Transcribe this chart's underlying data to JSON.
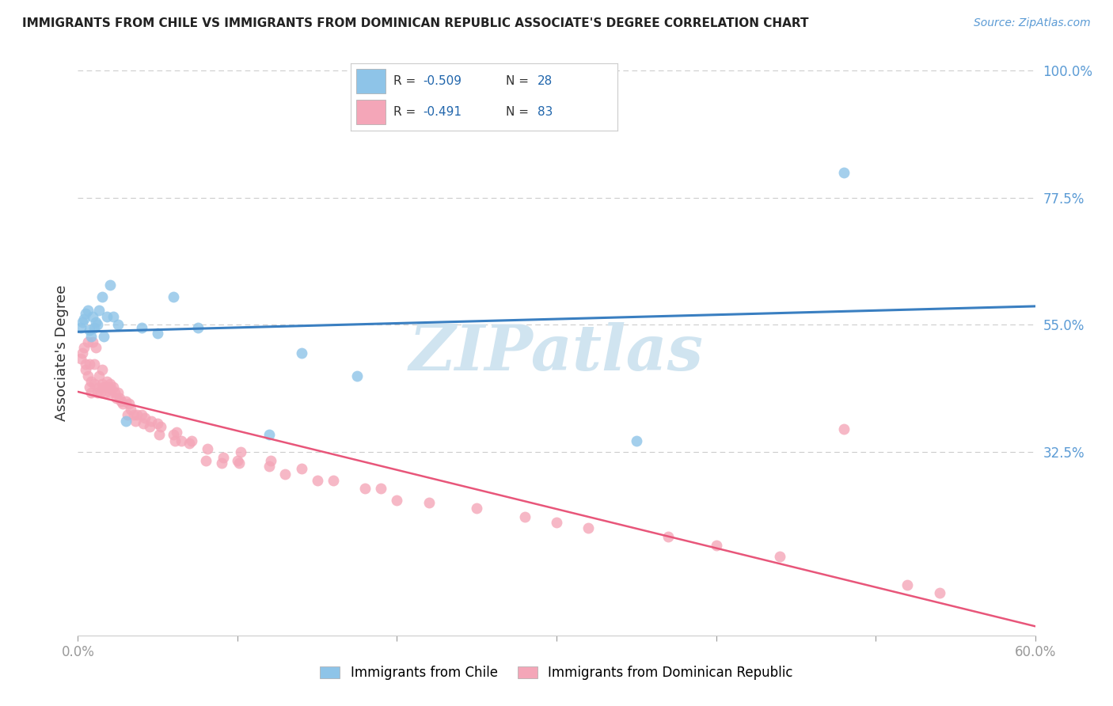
{
  "title": "IMMIGRANTS FROM CHILE VS IMMIGRANTS FROM DOMINICAN REPUBLIC ASSOCIATE'S DEGREE CORRELATION CHART",
  "source": "Source: ZipAtlas.com",
  "ylabel": "Associate's Degree",
  "xlabel_legend1": "Immigrants from Chile",
  "xlabel_legend2": "Immigrants from Dominican Republic",
  "R1": -0.509,
  "N1": 28,
  "R2": -0.491,
  "N2": 83,
  "xlim": [
    0.0,
    0.6
  ],
  "ylim": [
    0.0,
    1.0
  ],
  "xtick_vals": [
    0.0,
    0.1,
    0.2,
    0.3,
    0.4,
    0.5,
    0.6
  ],
  "xtick_labels": [
    "0.0%",
    "",
    "",
    "",
    "",
    "",
    "60.0%"
  ],
  "yticks_right": [
    1.0,
    0.775,
    0.55,
    0.325
  ],
  "ytick_right_labels": [
    "100.0%",
    "77.5%",
    "55.0%",
    "32.5%"
  ],
  "color_chile": "#8ec4e8",
  "color_dr": "#f4a6b8",
  "color_line_chile": "#3a7fc1",
  "color_line_dr": "#e8567a",
  "color_grid": "#cccccc",
  "background_color": "#ffffff",
  "watermark": "ZIPatlas",
  "watermark_color": "#d0e4f0",
  "chile_x": [
    0.002,
    0.003,
    0.004,
    0.005,
    0.006,
    0.007,
    0.008,
    0.009,
    0.01,
    0.011,
    0.012,
    0.013,
    0.015,
    0.016,
    0.018,
    0.02,
    0.022,
    0.025,
    0.03,
    0.04,
    0.05,
    0.06,
    0.075,
    0.12,
    0.14,
    0.175,
    0.35,
    0.48
  ],
  "chile_y": [
    0.545,
    0.555,
    0.56,
    0.57,
    0.575,
    0.54,
    0.53,
    0.565,
    0.545,
    0.555,
    0.55,
    0.575,
    0.6,
    0.53,
    0.565,
    0.62,
    0.565,
    0.55,
    0.38,
    0.545,
    0.535,
    0.6,
    0.545,
    0.355,
    0.5,
    0.46,
    0.345,
    0.82
  ],
  "dr_x": [
    0.002,
    0.003,
    0.004,
    0.005,
    0.005,
    0.006,
    0.006,
    0.007,
    0.007,
    0.008,
    0.008,
    0.009,
    0.01,
    0.01,
    0.011,
    0.012,
    0.013,
    0.013,
    0.014,
    0.015,
    0.015,
    0.016,
    0.017,
    0.018,
    0.019,
    0.02,
    0.02,
    0.021,
    0.022,
    0.023,
    0.024,
    0.025,
    0.026,
    0.027,
    0.028,
    0.03,
    0.031,
    0.032,
    0.033,
    0.035,
    0.036,
    0.037,
    0.04,
    0.041,
    0.042,
    0.045,
    0.046,
    0.05,
    0.051,
    0.052,
    0.06,
    0.061,
    0.062,
    0.065,
    0.07,
    0.071,
    0.08,
    0.081,
    0.09,
    0.091,
    0.1,
    0.101,
    0.102,
    0.12,
    0.121,
    0.13,
    0.14,
    0.15,
    0.16,
    0.18,
    0.19,
    0.2,
    0.22,
    0.25,
    0.28,
    0.3,
    0.32,
    0.37,
    0.4,
    0.44,
    0.48,
    0.52,
    0.54
  ],
  "dr_y": [
    0.49,
    0.5,
    0.51,
    0.47,
    0.48,
    0.46,
    0.52,
    0.48,
    0.44,
    0.45,
    0.43,
    0.52,
    0.48,
    0.445,
    0.51,
    0.43,
    0.46,
    0.44,
    0.43,
    0.445,
    0.47,
    0.44,
    0.43,
    0.45,
    0.44,
    0.43,
    0.445,
    0.435,
    0.44,
    0.43,
    0.42,
    0.43,
    0.42,
    0.415,
    0.41,
    0.415,
    0.39,
    0.41,
    0.4,
    0.39,
    0.38,
    0.39,
    0.39,
    0.375,
    0.385,
    0.37,
    0.38,
    0.375,
    0.355,
    0.37,
    0.355,
    0.345,
    0.36,
    0.345,
    0.34,
    0.345,
    0.31,
    0.33,
    0.305,
    0.315,
    0.31,
    0.305,
    0.325,
    0.3,
    0.31,
    0.285,
    0.295,
    0.275,
    0.275,
    0.26,
    0.26,
    0.24,
    0.235,
    0.225,
    0.21,
    0.2,
    0.19,
    0.175,
    0.16,
    0.14,
    0.365,
    0.09,
    0.075
  ]
}
